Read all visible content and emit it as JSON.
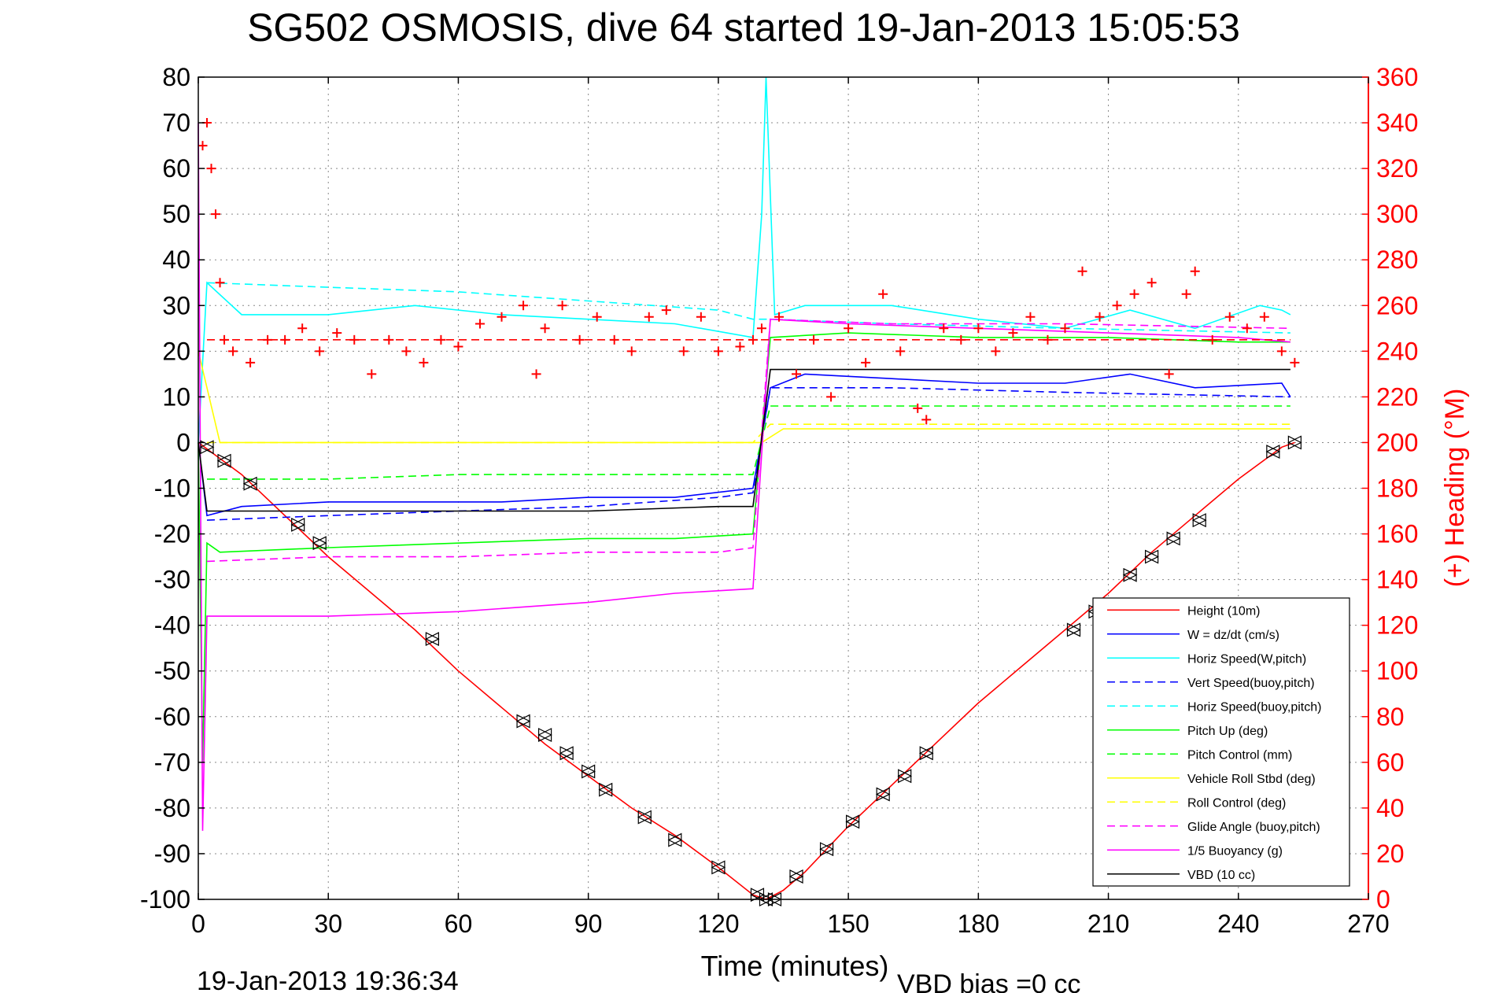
{
  "chart_data": {
    "type": "line",
    "title": "SG502 OSMOSIS, dive 64 started 19-Jan-2013 15:05:53",
    "xlabel": "Time (minutes)",
    "ylabel_right": "(+) Heading (°M)",
    "xlim": [
      0,
      270
    ],
    "ylim": [
      -100,
      80
    ],
    "ylim_right": [
      0,
      360
    ],
    "x_ticks": [
      "0",
      "30",
      "60",
      "90",
      "120",
      "150",
      "180",
      "210",
      "240",
      "270"
    ],
    "y_ticks": [
      "80",
      "70",
      "60",
      "50",
      "40",
      "30",
      "20",
      "10",
      "0",
      "-10",
      "-20",
      "-30",
      "-40",
      "-50",
      "-60",
      "-70",
      "-80",
      "-90",
      "-100"
    ],
    "y_ticks_right": [
      "360",
      "340",
      "320",
      "300",
      "280",
      "260",
      "240",
      "220",
      "200",
      "180",
      "160",
      "140",
      "120",
      "100",
      "80",
      "60",
      "40",
      "20",
      "0"
    ],
    "grid": true,
    "legend_position": "bottom-right",
    "footer_left": "19-Jan-2013 19:36:34",
    "footer_right": "VBD bias =0 cc",
    "colors": {
      "red": "#ff0000",
      "blue": "#0000ff",
      "cyan": "#00ffff",
      "green": "#00ff00",
      "yellow": "#ffff00",
      "magenta": "#ff00ff",
      "black": "#000000"
    },
    "series": [
      {
        "name": "Height (10m)",
        "color": "#ff0000",
        "dash": false,
        "x": [
          0,
          10,
          20,
          30,
          40,
          50,
          60,
          70,
          80,
          90,
          100,
          110,
          120,
          128,
          131,
          135,
          140,
          150,
          160,
          170,
          180,
          190,
          200,
          210,
          220,
          230,
          240,
          250,
          253
        ],
        "y": [
          0,
          -7,
          -16,
          -25,
          -33,
          -41,
          -50,
          -58,
          -66,
          -73,
          -80,
          -86,
          -93,
          -99,
          -100,
          -98,
          -94,
          -84,
          -75,
          -66,
          -57,
          -49,
          -41,
          -33,
          -24,
          -16,
          -8,
          -1,
          0
        ]
      },
      {
        "name": "W = dz/dt (cm/s)",
        "color": "#0000ff",
        "dash": false,
        "x": [
          0,
          2,
          10,
          30,
          50,
          70,
          90,
          110,
          128,
          132,
          140,
          160,
          180,
          200,
          215,
          230,
          250,
          252
        ],
        "y": [
          0,
          -16,
          -14,
          -13,
          -13,
          -13,
          -12,
          -12,
          -10,
          12,
          15,
          14,
          13,
          13,
          15,
          12,
          13,
          10
        ]
      },
      {
        "name": "Horiz Speed(W,pitch)",
        "color": "#00ffff",
        "dash": false,
        "x": [
          0,
          2,
          10,
          30,
          50,
          70,
          90,
          110,
          128,
          130,
          131,
          133,
          140,
          160,
          180,
          200,
          215,
          230,
          245,
          250,
          252
        ],
        "y": [
          0,
          35,
          28,
          28,
          30,
          28,
          27,
          26,
          23,
          50,
          80,
          28,
          30,
          30,
          27,
          25,
          29,
          25,
          30,
          29,
          28
        ]
      },
      {
        "name": "Vert Speed(buoy,pitch)",
        "color": "#0000ff",
        "dash": true,
        "x": [
          2,
          30,
          60,
          90,
          120,
          128,
          132,
          160,
          200,
          252
        ],
        "y": [
          -17,
          -16,
          -15,
          -14,
          -12,
          -11,
          12,
          12,
          11,
          10
        ]
      },
      {
        "name": "Horiz Speed(buoy,pitch)",
        "color": "#00ffff",
        "dash": true,
        "x": [
          2,
          30,
          60,
          90,
          120,
          128,
          132,
          160,
          200,
          252
        ],
        "y": [
          35,
          34,
          33,
          31,
          29,
          27,
          27,
          26,
          25,
          24
        ]
      },
      {
        "name": "Pitch Up (deg)",
        "color": "#00ff00",
        "dash": false,
        "x": [
          0,
          1,
          2,
          5,
          30,
          60,
          90,
          110,
          128,
          132,
          150,
          180,
          210,
          240,
          252
        ],
        "y": [
          0,
          -70,
          -22,
          -24,
          -23,
          -22,
          -21,
          -21,
          -20,
          23,
          24,
          23,
          23,
          22,
          22
        ]
      },
      {
        "name": "Pitch Control (mm)",
        "color": "#00ff00",
        "dash": true,
        "x": [
          2,
          30,
          60,
          90,
          120,
          128,
          132,
          160,
          200,
          252
        ],
        "y": [
          -8,
          -8,
          -7,
          -7,
          -7,
          -7,
          8,
          8,
          8,
          8
        ]
      },
      {
        "name": "Vehicle Roll Stbd (deg)",
        "color": "#ffff00",
        "dash": false,
        "x": [
          0,
          5,
          30,
          60,
          90,
          120,
          130,
          135,
          160,
          190,
          220,
          250,
          252
        ],
        "y": [
          20,
          0,
          0,
          0,
          0,
          0,
          0,
          3,
          3,
          3,
          3,
          3,
          3
        ]
      },
      {
        "name": "Roll Control (deg)",
        "color": "#ffff00",
        "dash": true,
        "x": [
          2,
          60,
          128,
          132,
          200,
          252
        ],
        "y": [
          0,
          0,
          0,
          4,
          4,
          4
        ]
      },
      {
        "name": "Glide Angle (buoy,pitch)",
        "color": "#ff00ff",
        "dash": true,
        "x": [
          2,
          30,
          60,
          90,
          120,
          128,
          132,
          160,
          200,
          252
        ],
        "y": [
          -26,
          -25,
          -25,
          -24,
          -24,
          -23,
          27,
          26,
          26,
          25
        ]
      },
      {
        "name": "1/5 Buoyancy (g)",
        "color": "#ff00ff",
        "dash": false,
        "x": [
          0,
          1,
          2,
          10,
          30,
          60,
          90,
          110,
          128,
          132,
          150,
          180,
          210,
          240,
          252
        ],
        "y": [
          70,
          -85,
          -38,
          -38,
          -38,
          -37,
          -35,
          -33,
          -32,
          27,
          26,
          25,
          24,
          23,
          22
        ]
      },
      {
        "name": "VBD (10 cc)",
        "color": "#000000",
        "dash": false,
        "x": [
          0,
          2,
          30,
          60,
          90,
          120,
          128,
          132,
          160,
          200,
          252
        ],
        "y": [
          0,
          -15,
          -15,
          -15,
          -15,
          -14,
          -14,
          16,
          16,
          16,
          16
        ]
      },
      {
        "name": "Heading",
        "color": "#ff0000",
        "marker": "+",
        "axis": "right",
        "x": [
          1,
          2,
          3,
          4,
          5,
          6,
          8,
          12,
          16,
          20,
          24,
          28,
          32,
          36,
          40,
          44,
          48,
          52,
          56,
          60,
          65,
          70,
          75,
          78,
          80,
          84,
          88,
          92,
          96,
          100,
          104,
          108,
          112,
          116,
          120,
          125,
          128,
          130,
          134,
          138,
          142,
          146,
          150,
          154,
          158,
          162,
          166,
          168,
          172,
          176,
          180,
          184,
          188,
          192,
          196,
          200,
          204,
          208,
          212,
          216,
          220,
          224,
          228,
          230,
          234,
          238,
          242,
          246,
          250,
          253
        ],
        "y": [
          330,
          340,
          320,
          300,
          270,
          245,
          240,
          235,
          245,
          245,
          250,
          240,
          248,
          245,
          230,
          245,
          240,
          235,
          245,
          242,
          252,
          255,
          260,
          230,
          250,
          260,
          245,
          255,
          245,
          240,
          255,
          258,
          240,
          255,
          240,
          242,
          245,
          250,
          255,
          230,
          245,
          220,
          250,
          235,
          265,
          240,
          215,
          210,
          250,
          245,
          250,
          240,
          248,
          255,
          245,
          250,
          275,
          255,
          260,
          265,
          270,
          230,
          265,
          275,
          245,
          255,
          250,
          255,
          240,
          235
        ]
      },
      {
        "name": "Heading ref",
        "color": "#ff0000",
        "dash": true,
        "axis": "right",
        "x": [
          2,
          252
        ],
        "y": [
          245,
          245
        ]
      },
      {
        "name": "Markers",
        "color": "#000000",
        "marker": "triangle",
        "x": [
          2,
          6,
          12,
          23,
          28,
          54,
          75,
          80,
          85,
          90,
          94,
          103,
          110,
          120,
          129,
          131,
          133,
          138,
          145,
          151,
          158,
          163,
          168,
          202,
          207,
          215,
          220,
          225,
          231,
          248,
          253
        ],
        "y": [
          -1,
          -4,
          -9,
          -18,
          -22,
          -43,
          -61,
          -64,
          -68,
          -72,
          -76,
          -82,
          -87,
          -93,
          -99,
          -100,
          -100,
          -95,
          -89,
          -83,
          -77,
          -73,
          -68,
          -41,
          -37,
          -29,
          -25,
          -21,
          -17,
          -2,
          0
        ]
      }
    ]
  }
}
